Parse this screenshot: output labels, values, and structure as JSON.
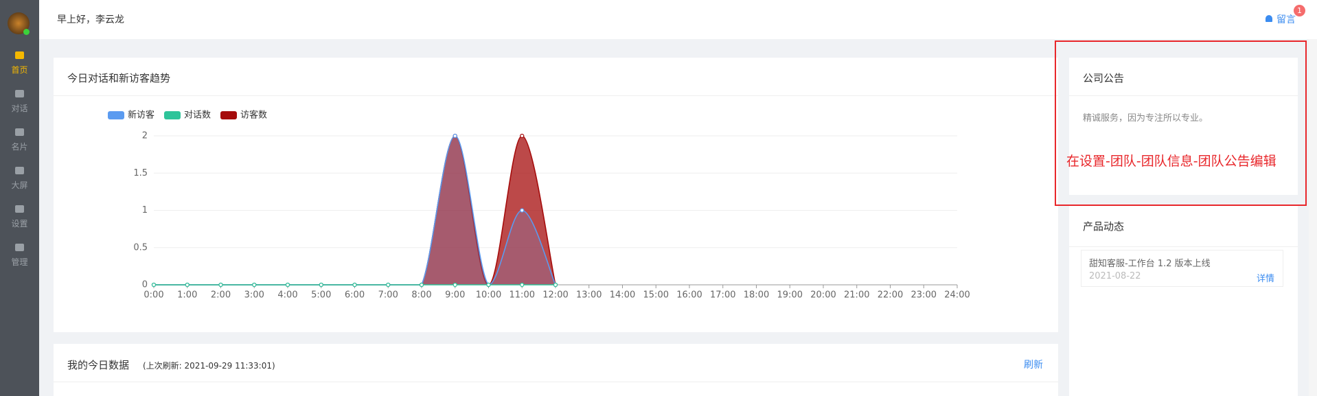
{
  "header": {
    "greeting": "早上好，李云龙",
    "message": "留言",
    "badge": 1
  },
  "sidebar": {
    "items": [
      "首页",
      "对话",
      "名片",
      "大屏",
      "设置",
      "管理"
    ]
  },
  "chart_data": {
    "type": "area",
    "title": "今日对话和新访客趋势",
    "x": [
      0,
      1,
      2,
      3,
      4,
      5,
      6,
      7,
      8,
      9,
      10,
      11,
      12
    ],
    "series": [
      {
        "name": "新访客",
        "color": "#5b9bf0",
        "values": [
          0,
          0,
          0,
          0,
          0,
          0,
          0,
          0,
          0,
          2,
          0,
          1,
          0
        ]
      },
      {
        "name": "对话数",
        "color": "#2ec49a",
        "values": [
          0,
          0,
          0,
          0,
          0,
          0,
          0,
          0,
          0,
          0,
          0,
          0,
          0
        ]
      },
      {
        "name": "访客数",
        "color": "#a50c0c",
        "values": [
          0,
          0,
          0,
          0,
          0,
          0,
          0,
          0,
          0,
          2,
          0,
          2,
          0
        ]
      }
    ],
    "xlim": [
      0,
      24
    ],
    "xticks": [
      {
        "value": 0,
        "label": "0:00"
      },
      {
        "value": 1,
        "label": "1:00"
      },
      {
        "value": 2,
        "label": "2:00"
      },
      {
        "value": 3,
        "label": "3:00"
      },
      {
        "value": 4,
        "label": "4:00"
      },
      {
        "value": 5,
        "label": "5:00"
      },
      {
        "value": 6,
        "label": "6:00"
      },
      {
        "value": 7,
        "label": "7:00"
      },
      {
        "value": 8,
        "label": "8:00"
      },
      {
        "value": 9,
        "label": "9:00"
      },
      {
        "value": 10,
        "label": "10:00"
      },
      {
        "value": 11,
        "label": "11:00"
      },
      {
        "value": 12,
        "label": "12:00"
      },
      {
        "value": 13,
        "label": "13:00"
      },
      {
        "value": 14,
        "label": "14:00"
      },
      {
        "value": 15,
        "label": "15:00"
      },
      {
        "value": 16,
        "label": "16:00"
      },
      {
        "value": 17,
        "label": "17:00"
      },
      {
        "value": 18,
        "label": "18:00"
      },
      {
        "value": 19,
        "label": "19:00"
      },
      {
        "value": 20,
        "label": "20:00"
      },
      {
        "value": 21,
        "label": "21:00"
      },
      {
        "value": 22,
        "label": "22:00"
      },
      {
        "value": 23,
        "label": "23:00"
      },
      {
        "value": 24,
        "label": "24:00"
      }
    ],
    "ylim": [
      0,
      2
    ],
    "yticks": [
      0,
      0.5,
      1,
      1.5,
      2
    ],
    "grid": true,
    "smooth": true
  },
  "today_card": {
    "title": "我的今日数据",
    "refresh_time": "(上次刷新: 2021-09-29 11:33:01)",
    "refresh": "刷新"
  },
  "notice_card": {
    "title": "公司公告",
    "text": "精诚服务，因为专注所以专业。"
  },
  "annotation": "在设置-团队-团队信息-团队公告编辑",
  "news_card": {
    "title": "产品动态",
    "items": [
      {
        "title": "甜知客服-工作台 1.2 版本上线",
        "date": "2021-08-22",
        "link": "详情"
      }
    ]
  }
}
